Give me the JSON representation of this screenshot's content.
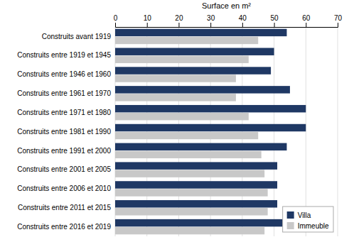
{
  "chart_data": {
    "type": "bar",
    "orientation": "horizontal",
    "xlabel": "Surface en m²",
    "categories": [
      "Construits avant 1919",
      "Construits entre 1919 et 1945",
      "Construits entre 1946 et 1960",
      "Construits entre 1961 et 1970",
      "Construits entre 1971 et 1980",
      "Construits entre 1981 et 1990",
      "Construits entre 1991 et 2000",
      "Construits entre 2001 et 2005",
      "Construits entre 2006 et 2010",
      "Construits entre 2011 et 2015",
      "Construits entre 2016 et 2019"
    ],
    "series": [
      {
        "name": "Villa",
        "color": "#1F3864",
        "values": [
          54,
          50,
          49,
          55,
          60,
          60,
          54,
          51,
          51,
          51,
          53
        ]
      },
      {
        "name": "Immeuble",
        "color": "#C8C8C8",
        "values": [
          45,
          42,
          38,
          38,
          42,
          45,
          46,
          47,
          48,
          48,
          47
        ]
      }
    ],
    "xlim": [
      0,
      70
    ],
    "xticks": [
      0,
      10,
      20,
      30,
      40,
      50,
      60,
      70
    ],
    "grid": true,
    "legend": "lower right"
  }
}
